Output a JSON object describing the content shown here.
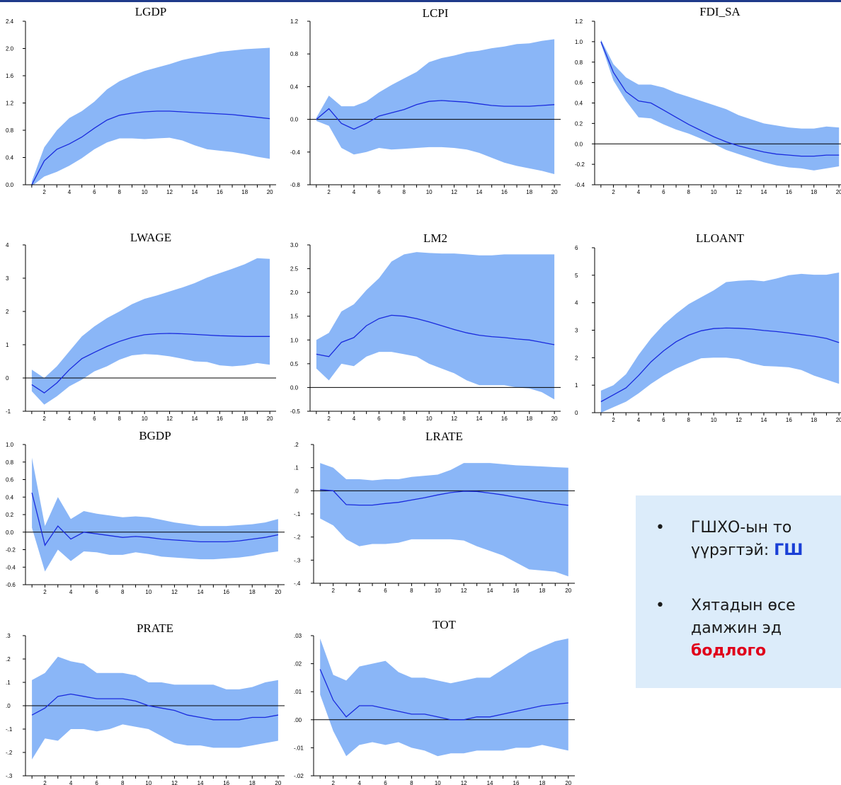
{
  "chart_data": [
    {
      "type": "area",
      "title": "LGDP",
      "x": [
        1,
        2,
        3,
        4,
        5,
        6,
        7,
        8,
        9,
        10,
        11,
        12,
        13,
        14,
        15,
        16,
        17,
        18,
        19,
        20
      ],
      "series": [
        {
          "values": [
            0.0,
            0.35,
            0.52,
            0.6,
            0.7,
            0.83,
            0.95,
            1.02,
            1.05,
            1.07,
            1.08,
            1.08,
            1.07,
            1.06,
            1.05,
            1.04,
            1.03,
            1.01,
            0.99,
            0.97
          ]
        }
      ],
      "upper": [
        0.05,
        0.55,
        0.8,
        0.98,
        1.08,
        1.22,
        1.4,
        1.52,
        1.6,
        1.67,
        1.72,
        1.77,
        1.83,
        1.87,
        1.91,
        1.95,
        1.97,
        1.99,
        2.0,
        2.01
      ],
      "lower": [
        -0.02,
        0.12,
        0.19,
        0.28,
        0.39,
        0.52,
        0.62,
        0.68,
        0.68,
        0.67,
        0.68,
        0.69,
        0.65,
        0.58,
        0.52,
        0.5,
        0.48,
        0.45,
        0.41,
        0.38
      ],
      "ylim": [
        0.0,
        2.4
      ],
      "yticks": [
        "0.0",
        "0.4",
        "0.8",
        "1.2",
        "1.6",
        "2.0",
        "2.4"
      ],
      "xticks": [
        "2",
        "4",
        "6",
        "8",
        "10",
        "12",
        "14",
        "16",
        "18",
        "20"
      ],
      "zero_line": false
    },
    {
      "type": "area",
      "title": "LCPI",
      "x": [
        1,
        2,
        3,
        4,
        5,
        6,
        7,
        8,
        9,
        10,
        11,
        12,
        13,
        14,
        15,
        16,
        17,
        18,
        19,
        20
      ],
      "series": [
        {
          "values": [
            0.0,
            0.13,
            -0.05,
            -0.12,
            -0.05,
            0.04,
            0.08,
            0.12,
            0.18,
            0.22,
            0.23,
            0.22,
            0.21,
            0.19,
            0.17,
            0.16,
            0.16,
            0.16,
            0.17,
            0.18
          ]
        }
      ],
      "upper": [
        0.02,
        0.29,
        0.16,
        0.16,
        0.22,
        0.33,
        0.42,
        0.5,
        0.58,
        0.7,
        0.75,
        0.78,
        0.82,
        0.84,
        0.87,
        0.89,
        0.92,
        0.93,
        0.96,
        0.98
      ],
      "lower": [
        -0.02,
        -0.08,
        -0.35,
        -0.43,
        -0.4,
        -0.35,
        -0.37,
        -0.36,
        -0.35,
        -0.34,
        -0.34,
        -0.35,
        -0.37,
        -0.41,
        -0.47,
        -0.53,
        -0.57,
        -0.6,
        -0.63,
        -0.67
      ],
      "ylim": [
        -0.8,
        1.2
      ],
      "yticks": [
        "-0.8",
        "-0.4",
        "0.0",
        "0.4",
        "0.8",
        "1.2"
      ],
      "xticks": [
        "2",
        "4",
        "6",
        "8",
        "10",
        "12",
        "14",
        "16",
        "18",
        "20"
      ],
      "zero_line": true
    },
    {
      "type": "area",
      "title": "FDI_SA",
      "x": [
        1,
        2,
        3,
        4,
        5,
        6,
        7,
        8,
        9,
        10,
        11,
        12,
        13,
        14,
        15,
        16,
        17,
        18,
        19,
        20
      ],
      "series": [
        {
          "values": [
            1.0,
            0.7,
            0.51,
            0.42,
            0.4,
            0.33,
            0.26,
            0.19,
            0.13,
            0.07,
            0.02,
            -0.02,
            -0.05,
            -0.08,
            -0.1,
            -0.11,
            -0.12,
            -0.12,
            -0.11,
            -0.11
          ]
        }
      ],
      "upper": [
        1.02,
        0.78,
        0.65,
        0.58,
        0.58,
        0.55,
        0.5,
        0.46,
        0.42,
        0.38,
        0.34,
        0.28,
        0.24,
        0.2,
        0.18,
        0.16,
        0.15,
        0.15,
        0.17,
        0.16
      ],
      "lower": [
        0.98,
        0.62,
        0.42,
        0.26,
        0.25,
        0.19,
        0.14,
        0.1,
        0.05,
        0.0,
        -0.06,
        -0.1,
        -0.14,
        -0.18,
        -0.21,
        -0.23,
        -0.24,
        -0.26,
        -0.24,
        -0.22
      ],
      "ylim": [
        -0.4,
        1.2
      ],
      "yticks": [
        "-0.4",
        "-0.2",
        "0.0",
        "0.2",
        "0.4",
        "0.6",
        "0.8",
        "1.0",
        "1.2"
      ],
      "xticks": [
        "2",
        "4",
        "6",
        "8",
        "10",
        "12",
        "14",
        "16",
        "18",
        "20"
      ],
      "zero_line": true
    },
    {
      "type": "area",
      "title": "LWAGE",
      "x": [
        1,
        2,
        3,
        4,
        5,
        6,
        7,
        8,
        9,
        10,
        11,
        12,
        13,
        14,
        15,
        16,
        17,
        18,
        19,
        20
      ],
      "series": [
        {
          "values": [
            -0.2,
            -0.45,
            -0.15,
            0.25,
            0.58,
            0.77,
            0.95,
            1.1,
            1.22,
            1.3,
            1.33,
            1.34,
            1.33,
            1.31,
            1.29,
            1.27,
            1.26,
            1.25,
            1.25,
            1.25
          ]
        }
      ],
      "upper": [
        0.25,
        0.0,
        0.35,
        0.8,
        1.25,
        1.55,
        1.8,
        2.0,
        2.22,
        2.38,
        2.48,
        2.6,
        2.72,
        2.85,
        3.02,
        3.15,
        3.28,
        3.42,
        3.6,
        3.58
      ],
      "lower": [
        -0.4,
        -0.8,
        -0.55,
        -0.25,
        -0.05,
        0.2,
        0.35,
        0.55,
        0.68,
        0.72,
        0.7,
        0.65,
        0.58,
        0.5,
        0.48,
        0.38,
        0.35,
        0.38,
        0.45,
        0.4
      ],
      "ylim": [
        -1,
        4
      ],
      "yticks": [
        "-1",
        "0",
        "1",
        "2",
        "3",
        "4"
      ],
      "xticks": [
        "2",
        "4",
        "6",
        "8",
        "10",
        "12",
        "14",
        "16",
        "18",
        "20"
      ],
      "zero_line": true
    },
    {
      "type": "area",
      "title": "LM2",
      "x": [
        1,
        2,
        3,
        4,
        5,
        6,
        7,
        8,
        9,
        10,
        11,
        12,
        13,
        14,
        15,
        16,
        17,
        18,
        19,
        20
      ],
      "series": [
        {
          "values": [
            0.7,
            0.65,
            0.95,
            1.05,
            1.3,
            1.45,
            1.52,
            1.5,
            1.45,
            1.38,
            1.3,
            1.22,
            1.15,
            1.1,
            1.07,
            1.05,
            1.02,
            1.0,
            0.95,
            0.9
          ]
        }
      ],
      "upper": [
        1.0,
        1.15,
        1.6,
        1.75,
        2.05,
        2.3,
        2.65,
        2.8,
        2.85,
        2.83,
        2.82,
        2.82,
        2.8,
        2.78,
        2.78,
        2.8,
        2.8,
        2.8,
        2.8,
        2.8
      ],
      "lower": [
        0.4,
        0.15,
        0.5,
        0.45,
        0.65,
        0.75,
        0.75,
        0.7,
        0.65,
        0.5,
        0.4,
        0.3,
        0.15,
        0.05,
        0.05,
        0.05,
        0.0,
        -0.02,
        -0.1,
        -0.25
      ],
      "ylim": [
        -0.5,
        3.0
      ],
      "yticks": [
        "-0.5",
        "0.0",
        "0.5",
        "1.0",
        "1.5",
        "2.0",
        "2.5",
        "3.0"
      ],
      "xticks": [
        "2",
        "4",
        "6",
        "8",
        "10",
        "12",
        "14",
        "16",
        "18",
        "20"
      ],
      "zero_line": true
    },
    {
      "type": "area",
      "title": "LLOANT",
      "x": [
        1,
        2,
        3,
        4,
        5,
        6,
        7,
        8,
        9,
        10,
        11,
        12,
        13,
        14,
        15,
        16,
        17,
        18,
        19,
        20
      ],
      "series": [
        {
          "values": [
            0.4,
            0.65,
            0.9,
            1.35,
            1.85,
            2.25,
            2.58,
            2.82,
            2.98,
            3.06,
            3.08,
            3.07,
            3.04,
            2.99,
            2.95,
            2.9,
            2.84,
            2.78,
            2.7,
            2.55
          ]
        }
      ],
      "upper": [
        0.8,
        1.0,
        1.4,
        2.1,
        2.7,
        3.2,
        3.6,
        3.95,
        4.2,
        4.45,
        4.75,
        4.8,
        4.82,
        4.78,
        4.88,
        5.0,
        5.05,
        5.02,
        5.02,
        5.1
      ],
      "lower": [
        0.0,
        0.2,
        0.4,
        0.7,
        1.05,
        1.35,
        1.6,
        1.8,
        1.98,
        2.0,
        2.0,
        1.95,
        1.8,
        1.7,
        1.68,
        1.65,
        1.55,
        1.35,
        1.2,
        1.05
      ],
      "ylim": [
        0,
        6
      ],
      "yticks": [
        "0",
        "1",
        "2",
        "3",
        "4",
        "5",
        "6"
      ],
      "xticks": [
        "2",
        "4",
        "6",
        "8",
        "10",
        "12",
        "14",
        "16",
        "18",
        "20"
      ],
      "zero_line": false
    },
    {
      "type": "area",
      "title": "BGDP",
      "x": [
        1,
        2,
        3,
        4,
        5,
        6,
        7,
        8,
        9,
        10,
        11,
        12,
        13,
        14,
        15,
        16,
        17,
        18,
        19,
        20
      ],
      "series": [
        {
          "values": [
            0.45,
            -0.15,
            0.07,
            -0.08,
            0.0,
            -0.02,
            -0.04,
            -0.06,
            -0.05,
            -0.06,
            -0.08,
            -0.09,
            -0.1,
            -0.11,
            -0.11,
            -0.11,
            -0.1,
            -0.08,
            -0.06,
            -0.03
          ]
        }
      ],
      "upper": [
        0.85,
        0.07,
        0.4,
        0.15,
        0.24,
        0.21,
        0.19,
        0.17,
        0.18,
        0.17,
        0.14,
        0.11,
        0.09,
        0.07,
        0.07,
        0.07,
        0.08,
        0.09,
        0.11,
        0.15
      ],
      "lower": [
        0.05,
        -0.45,
        -0.2,
        -0.33,
        -0.22,
        -0.23,
        -0.26,
        -0.26,
        -0.23,
        -0.25,
        -0.28,
        -0.29,
        -0.3,
        -0.31,
        -0.31,
        -0.3,
        -0.29,
        -0.27,
        -0.24,
        -0.22
      ],
      "ylim": [
        -0.6,
        1.0
      ],
      "yticks": [
        "-0.6",
        "-0.4",
        "-0.2",
        "0.0",
        "0.2",
        "0.4",
        "0.6",
        "0.8",
        "1.0"
      ],
      "xticks": [
        "2",
        "4",
        "6",
        "8",
        "10",
        "12",
        "14",
        "16",
        "18",
        "20"
      ],
      "zero_line": true
    },
    {
      "type": "area",
      "title": "LRATE",
      "x": [
        1,
        2,
        3,
        4,
        5,
        6,
        7,
        8,
        9,
        10,
        11,
        12,
        13,
        14,
        15,
        16,
        17,
        18,
        19,
        20
      ],
      "series": [
        {
          "values": [
            0.005,
            0.0,
            -0.06,
            -0.062,
            -0.062,
            -0.055,
            -0.05,
            -0.04,
            -0.03,
            -0.018,
            -0.008,
            -0.002,
            -0.003,
            -0.01,
            -0.018,
            -0.028,
            -0.038,
            -0.048,
            -0.056,
            -0.063
          ]
        }
      ],
      "upper": [
        0.12,
        0.1,
        0.05,
        0.05,
        0.045,
        0.05,
        0.05,
        0.06,
        0.065,
        0.07,
        0.09,
        0.12,
        0.12,
        0.12,
        0.115,
        0.11,
        0.108,
        0.105,
        0.102,
        0.1
      ],
      "lower": [
        -0.12,
        -0.15,
        -0.21,
        -0.24,
        -0.23,
        -0.23,
        -0.225,
        -0.21,
        -0.21,
        -0.21,
        -0.21,
        -0.215,
        -0.24,
        -0.26,
        -0.28,
        -0.31,
        -0.34,
        -0.345,
        -0.35,
        -0.37
      ],
      "ylim": [
        -0.4,
        0.2
      ],
      "yticks": [
        "-.4",
        "-.3",
        "-.2",
        "-.1",
        ".0",
        ".1",
        ".2"
      ],
      "xticks": [
        "2",
        "4",
        "6",
        "8",
        "10",
        "12",
        "14",
        "16",
        "18",
        "20"
      ],
      "zero_line": true
    },
    {
      "type": "area",
      "title": "PRATE",
      "x": [
        1,
        2,
        3,
        4,
        5,
        6,
        7,
        8,
        9,
        10,
        11,
        12,
        13,
        14,
        15,
        16,
        17,
        18,
        19,
        20
      ],
      "series": [
        {
          "values": [
            -0.04,
            -0.01,
            0.04,
            0.05,
            0.04,
            0.03,
            0.03,
            0.03,
            0.02,
            0.0,
            -0.01,
            -0.02,
            -0.04,
            -0.05,
            -0.06,
            -0.06,
            -0.06,
            -0.05,
            -0.05,
            -0.04
          ]
        }
      ],
      "upper": [
        0.11,
        0.14,
        0.21,
        0.19,
        0.18,
        0.14,
        0.14,
        0.14,
        0.13,
        0.1,
        0.1,
        0.09,
        0.09,
        0.09,
        0.09,
        0.07,
        0.07,
        0.08,
        0.1,
        0.11
      ],
      "lower": [
        -0.23,
        -0.14,
        -0.15,
        -0.1,
        -0.1,
        -0.11,
        -0.1,
        -0.08,
        -0.09,
        -0.1,
        -0.13,
        -0.16,
        -0.17,
        -0.17,
        -0.18,
        -0.18,
        -0.18,
        -0.17,
        -0.16,
        -0.15
      ],
      "ylim": [
        -0.3,
        0.3
      ],
      "yticks": [
        "-.3",
        "-.2",
        "-.1",
        ".0",
        ".1",
        ".2",
        ".3"
      ],
      "xticks": [
        "2",
        "4",
        "6",
        "8",
        "10",
        "12",
        "14",
        "16",
        "18",
        "20"
      ],
      "zero_line": true
    },
    {
      "type": "area",
      "title": "TOT",
      "x": [
        1,
        2,
        3,
        4,
        5,
        6,
        7,
        8,
        9,
        10,
        11,
        12,
        13,
        14,
        15,
        16,
        17,
        18,
        19,
        20
      ],
      "series": [
        {
          "values": [
            0.018,
            0.007,
            0.001,
            0.005,
            0.005,
            0.004,
            0.003,
            0.002,
            0.002,
            0.001,
            0.0,
            0.0,
            0.001,
            0.001,
            0.002,
            0.003,
            0.004,
            0.005,
            0.0055,
            0.006
          ]
        }
      ],
      "upper": [
        0.029,
        0.016,
        0.014,
        0.019,
        0.02,
        0.021,
        0.017,
        0.015,
        0.015,
        0.014,
        0.013,
        0.014,
        0.015,
        0.015,
        0.018,
        0.021,
        0.024,
        0.026,
        0.028,
        0.029
      ],
      "lower": [
        0.009,
        -0.004,
        -0.013,
        -0.009,
        -0.008,
        -0.009,
        -0.008,
        -0.01,
        -0.011,
        -0.013,
        -0.012,
        -0.012,
        -0.011,
        -0.011,
        -0.011,
        -0.01,
        -0.01,
        -0.009,
        -0.01,
        -0.011
      ],
      "ylim": [
        -0.02,
        0.03
      ],
      "yticks": [
        "-.02",
        "-.01",
        ".00",
        ".01",
        ".02",
        ".03"
      ],
      "xticks": [
        "2",
        "4",
        "6",
        "8",
        "10",
        "12",
        "14",
        "16",
        "18",
        "20"
      ],
      "zero_line": true
    }
  ],
  "notes": [
    {
      "bullet": "•",
      "lines": [
        [
          {
            "text": "ГШХО-ын то",
            "style": "plain"
          }
        ],
        [
          {
            "text": "үүрэгтэй: ",
            "style": "plain"
          },
          {
            "text": "ГШ",
            "style": "blue-bold"
          }
        ]
      ]
    },
    {
      "bullet": "•",
      "lines": [
        [
          {
            "text": "Хятадын өсе",
            "style": "plain"
          }
        ],
        [
          {
            "text": "дамжин  эд",
            "style": "plain"
          }
        ],
        [
          {
            "text": "бодлого",
            "style": "red-bold"
          }
        ]
      ]
    }
  ],
  "colors": {
    "band": "#8ab6f7",
    "line": "#1a2bdd",
    "axis": "#000000",
    "note_bg": "#dcecfa",
    "accent_blue": "#1a3fd6",
    "accent_red": "#e0001a"
  }
}
